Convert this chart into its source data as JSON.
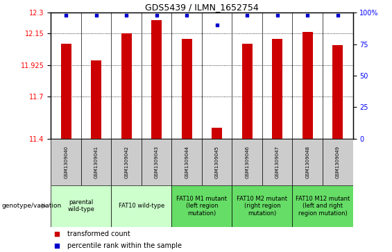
{
  "title": "GDS5439 / ILMN_1652754",
  "samples": [
    "GSM1309040",
    "GSM1309041",
    "GSM1309042",
    "GSM1309043",
    "GSM1309044",
    "GSM1309045",
    "GSM1309046",
    "GSM1309047",
    "GSM1309048",
    "GSM1309049"
  ],
  "bar_values": [
    12.08,
    11.96,
    12.15,
    12.245,
    12.11,
    11.48,
    12.08,
    12.11,
    12.16,
    12.07
  ],
  "bar_color": "#cc0000",
  "percentile_values": [
    98,
    98,
    98,
    98,
    98,
    90,
    98,
    98,
    98,
    98
  ],
  "percentile_color": "#0000cc",
  "ylim_left": [
    11.4,
    12.3
  ],
  "yticks_left": [
    11.4,
    11.7,
    11.925,
    12.15,
    12.3
  ],
  "ytick_labels_left": [
    "11.4",
    "11.7",
    "11.925",
    "12.15",
    "12.3"
  ],
  "ylim_right": [
    0,
    100
  ],
  "yticks_right": [
    0,
    25,
    50,
    75,
    100
  ],
  "ytick_labels_right": [
    "0",
    "25",
    "50",
    "75",
    "100%"
  ],
  "bar_width": 0.35,
  "groups": [
    {
      "label": "parental\nwild-type",
      "span": [
        0,
        2
      ],
      "color": "#ccffcc"
    },
    {
      "label": "FAT10 wild-type",
      "span": [
        2,
        4
      ],
      "color": "#ccffcc"
    },
    {
      "label": "FAT10 M1 mutant\n(left region\nmutation)",
      "span": [
        4,
        6
      ],
      "color": "#66dd66"
    },
    {
      "label": "FAT10 M2 mutant\n(right region\nmutation)",
      "span": [
        6,
        8
      ],
      "color": "#66dd66"
    },
    {
      "label": "FAT10 M12 mutant\n(left and right\nregion mutation)",
      "span": [
        8,
        10
      ],
      "color": "#66dd66"
    }
  ],
  "sample_cell_color": "#cccccc",
  "background_color": "#ffffff",
  "grid_color": "#000000",
  "left_axis_color": "red",
  "right_axis_color": "blue",
  "title_fontsize": 9,
  "axis_fontsize": 7,
  "sample_fontsize": 5,
  "group_fontsize": 6
}
